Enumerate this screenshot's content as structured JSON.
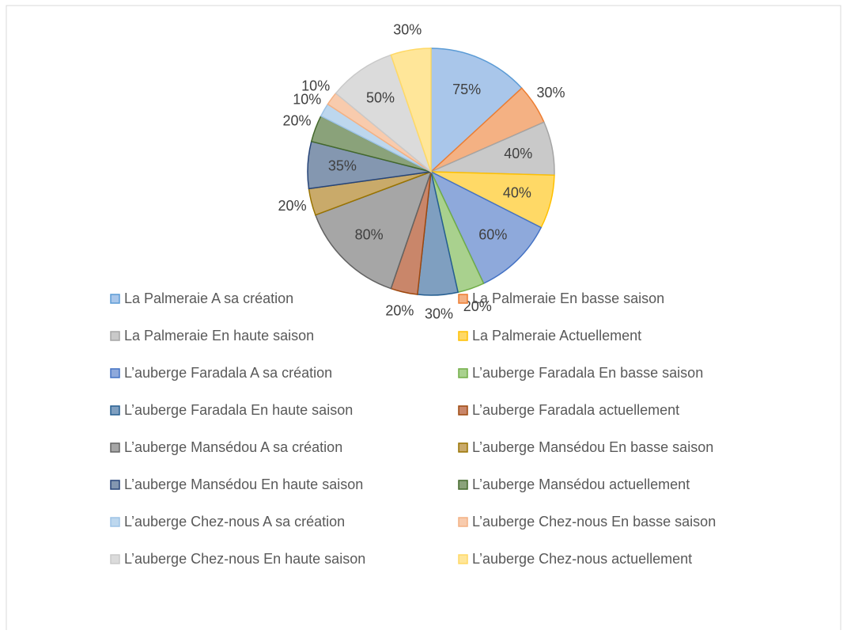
{
  "chart_data": {
    "type": "pie",
    "categories": [
      "La Palmeraie A sa création",
      "La Palmeraie En basse saison",
      "La Palmeraie En haute saison",
      "La Palmeraie Actuellement",
      "L’auberge Faradala A sa création",
      "L’auberge Faradala En basse saison",
      "L’auberge Faradala En haute saison",
      "L’auberge Faradala actuellement",
      "L’auberge Mansédou A sa création",
      "L’auberge Mansédou En basse saison",
      "L’auberge Mansédou En haute saison",
      "L’auberge Mansédou actuellement",
      "L’auberge Chez-nous A sa création",
      "L’auberge Chez-nous En basse saison",
      "L’auberge Chez-nous En haute saison",
      "L’auberge Chez-nous actuellement"
    ],
    "values": [
      75,
      30,
      40,
      40,
      60,
      20,
      30,
      20,
      80,
      20,
      35,
      20,
      10,
      10,
      50,
      30
    ],
    "value_labels": [
      "75%",
      "30%",
      "40%",
      "40%",
      "60%",
      "20%",
      "30%",
      "20%",
      "80%",
      "20%",
      "35%",
      "20%",
      "10%",
      "10%",
      "50%",
      "30%"
    ],
    "colors": [
      "#a9c6ea",
      "#f4b183",
      "#c9c9c9",
      "#ffd966",
      "#8ea9db",
      "#a9d18e",
      "#7f9fc0",
      "#c9866a",
      "#a6a6a6",
      "#c9aa6a",
      "#8497b0",
      "#8aa27a",
      "#bdd7ee",
      "#f8cbad",
      "#dbdbdb",
      "#ffe699"
    ],
    "edge_colors": [
      "#5b9bd5",
      "#ed7d31",
      "#a5a5a5",
      "#ffc000",
      "#4472c4",
      "#70ad47",
      "#255e91",
      "#9e480e",
      "#636363",
      "#997300",
      "#264478",
      "#43682b",
      "#9dc3e6",
      "#f4b183",
      "#c9c9c9",
      "#ffd966"
    ],
    "legend": "bottom"
  }
}
